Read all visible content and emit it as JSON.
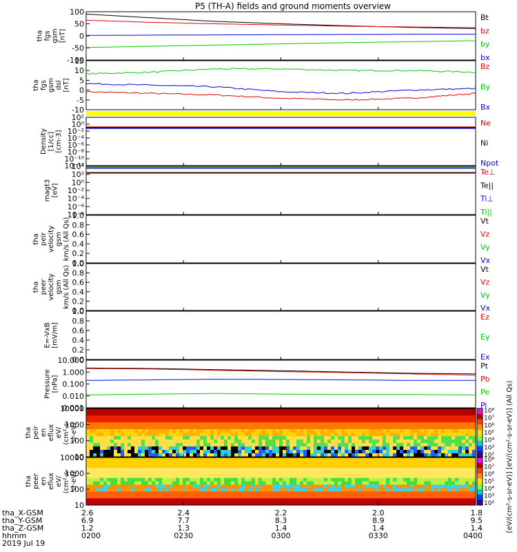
{
  "title": "P5 (TH-A) fields and ground moments overview",
  "date_label": "2019 Jul 19",
  "chart_data": [
    {
      "type": "line",
      "ylabel": [
        "tha",
        "fgs",
        "gsm",
        "[nT]"
      ],
      "yticks": [
        "100",
        "50",
        "0",
        "-50",
        "-100"
      ],
      "ylim": [
        -100,
        100
      ],
      "series": [
        {
          "name": "Bt",
          "color": "#000000",
          "values": [
            90,
            75,
            60,
            50,
            42,
            35,
            30
          ]
        },
        {
          "name": "bz",
          "color": "#e00000",
          "values": [
            65,
            56,
            50,
            45,
            40,
            37,
            34
          ]
        },
        {
          "name": "by",
          "color": "#00c800",
          "values": [
            -48,
            -43,
            -38,
            -33,
            -28,
            -24,
            -20
          ]
        },
        {
          "name": "bx",
          "color": "#0000e0",
          "values": [
            2,
            3,
            4,
            5,
            6,
            7,
            7
          ]
        }
      ]
    },
    {
      "type": "line",
      "ylabel": [
        "tha",
        "fgs",
        "gsm",
        "dsl",
        "[nT]"
      ],
      "yticks": [
        "15",
        "10",
        "5",
        "0",
        "-5",
        "-10"
      ],
      "ylim": [
        -15,
        15
      ],
      "series": [
        {
          "name": "Bz",
          "color": "#e00000",
          "values": [
            -4,
            -5,
            -6,
            -8,
            -9,
            -8,
            -5
          ]
        },
        {
          "name": "By",
          "color": "#00c800",
          "values": [
            7,
            8,
            10,
            10,
            9,
            9,
            8
          ]
        },
        {
          "name": "Bx",
          "color": "#0000e0",
          "values": [
            1,
            0,
            -1,
            -4,
            -5,
            -3,
            -2
          ]
        }
      ]
    },
    {
      "type": "line",
      "ylabel": [
        "Density",
        "[1/cc]",
        "[cm-3]"
      ],
      "yticks": [
        "10²",
        "10⁰",
        "10⁻²",
        "10⁻⁴",
        "10⁻⁶",
        "10⁻⁸",
        "10⁻¹⁰",
        "10⁻¹²"
      ],
      "series": [
        {
          "name": "Ne",
          "color": "#e00000"
        },
        {
          "name": "Ni",
          "color": "#000000"
        },
        {
          "name": "Npot",
          "color": "#0000e0"
        }
      ]
    },
    {
      "type": "line",
      "ylabel": [
        "magt3",
        "[eV]"
      ],
      "yticks": [
        "10⁴",
        "10²",
        "10⁰",
        "10⁻²",
        "10⁻⁴",
        "10⁻⁶",
        "10⁻⁸"
      ],
      "series": [
        {
          "name": "Te⊥",
          "color": "#e00000"
        },
        {
          "name": "Te||",
          "color": "#000000"
        },
        {
          "name": "Ti⊥",
          "color": "#0000e0"
        },
        {
          "name": "Ti||",
          "color": "#00c800"
        }
      ]
    },
    {
      "type": "line",
      "ylabel": [
        "tha",
        "peir",
        "velocity",
        "gsm",
        "km/s (All Qs)"
      ],
      "yticks": [
        "1.0",
        "0.8",
        "0.6",
        "0.4",
        "0.2",
        "0.0"
      ],
      "ylim": [
        0,
        1
      ],
      "series": [
        {
          "name": "Vt",
          "color": "#000000"
        },
        {
          "name": "Vz",
          "color": "#e00000"
        },
        {
          "name": "Vy",
          "color": "#00c800"
        },
        {
          "name": "Vx",
          "color": "#0000e0"
        }
      ]
    },
    {
      "type": "line",
      "ylabel": [
        "tha",
        "peer",
        "velocity",
        "gsm",
        "km/s (All Qs)"
      ],
      "yticks": [
        "1.0",
        "0.8",
        "0.6",
        "0.4",
        "0.2",
        "0.0"
      ],
      "ylim": [
        0,
        1
      ],
      "series": [
        {
          "name": "Vt",
          "color": "#000000"
        },
        {
          "name": "Vz",
          "color": "#e00000"
        },
        {
          "name": "Vy",
          "color": "#00c800"
        },
        {
          "name": "Vx",
          "color": "#0000e0"
        }
      ]
    },
    {
      "type": "line",
      "ylabel": [
        "E=-VxB",
        "[mV/m]"
      ],
      "yticks": [
        "1.0",
        "0.8",
        "0.6",
        "0.4",
        "0.2",
        "0.0"
      ],
      "ylim": [
        0,
        1
      ],
      "series": [
        {
          "name": "Ez",
          "color": "#e00000"
        },
        {
          "name": "Ey",
          "color": "#00c800"
        },
        {
          "name": "Ex",
          "color": "#0000e0"
        }
      ]
    },
    {
      "type": "line",
      "ylabel": [
        "Pressure",
        "[nPa]"
      ],
      "yticks": [
        "10.000",
        "1.000",
        "0.100",
        "0.010",
        "0.001"
      ],
      "ylim": [
        0.001,
        10
      ],
      "series": [
        {
          "name": "Pt",
          "color": "#000000",
          "values": [
            2.2,
            2.0,
            1.6,
            1.3,
            1.0,
            0.8,
            0.7
          ]
        },
        {
          "name": "Pb",
          "color": "#e00000",
          "values": [
            2.0,
            1.8,
            1.4,
            1.1,
            0.9,
            0.7,
            0.55
          ]
        },
        {
          "name": "Pe",
          "color": "#00c800",
          "values": [
            0.012,
            0.014,
            0.016,
            0.014,
            0.013,
            0.013,
            0.012
          ]
        },
        {
          "name": "Pi",
          "color": "#0000e0",
          "values": [
            0.2,
            0.22,
            0.25,
            0.24,
            0.22,
            0.2,
            0.2
          ]
        }
      ]
    },
    {
      "type": "heatmap",
      "ylabel": [
        "tha",
        "peir",
        "en",
        "eflux",
        "eV/",
        "(cm²-s-",
        "sr-eV)"
      ],
      "yticks": [
        "10000",
        "1000",
        "100",
        "10"
      ]
    },
    {
      "type": "heatmap",
      "ylabel": [
        "tha",
        "peer",
        "en",
        "eflux",
        "eV/",
        "(cm²-s-",
        "sr-eV)"
      ],
      "yticks": [
        "10000",
        "1000",
        "100",
        "10"
      ]
    }
  ],
  "colorbars": [
    {
      "ticks": [
        "10⁸",
        "10⁷",
        "10⁶",
        "10⁵",
        "10⁴",
        "10³",
        "10²"
      ]
    },
    {
      "ticks": [
        "10⁸",
        "10⁷",
        "10⁶",
        "10⁵",
        "10⁴",
        "10³",
        "10²"
      ]
    }
  ],
  "colorbar_label": "[eV/(cm²-s-sr-eV)] [eV/(cm²-s-sr-eV)] (All Qs)",
  "ephemeris": {
    "labels": [
      "tha_X-GSM",
      "tha_Y-GSM",
      "tha_Z-GSM",
      "hhmm",
      "2019 Jul 19"
    ],
    "columns": [
      {
        "x": "2.6",
        "y": "6.9",
        "z": "1.2",
        "t": "0200"
      },
      {
        "x": "2.4",
        "y": "7.7",
        "z": "1.3",
        "t": "0230"
      },
      {
        "x": "2.2",
        "y": "8.3",
        "z": "1.4",
        "t": "0300"
      },
      {
        "x": "2.0",
        "y": "8.9",
        "z": "1.4",
        "t": "0330"
      },
      {
        "x": "1.8",
        "y": "9.5",
        "z": "1.4",
        "t": "0400"
      }
    ]
  }
}
